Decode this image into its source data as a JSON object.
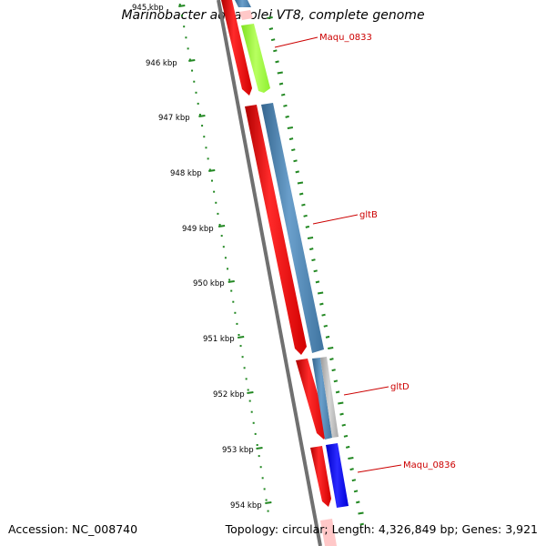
{
  "title": "Marinobacter aquaeolei VT8, complete genome",
  "footer": {
    "accession": "Accession: NC_008740",
    "summary": "Topology: circular; Length: 4,326,849 bp; Genes: 3,921"
  },
  "ticks": [
    "945 kbp",
    "946 kbp",
    "947 kbp",
    "948 kbp",
    "949 kbp",
    "950 kbp",
    "951 kbp",
    "952 kbp",
    "953 kbp",
    "954 kbp"
  ],
  "gene_labels": [
    "Maqu_0833",
    "gltB",
    "gltD",
    "Maqu_0836"
  ],
  "colors": {
    "backbone": "#707070",
    "cds": "#ff0000",
    "gene_blue": "#4682b4",
    "gene_green": "#9aff3a",
    "gene_grey": "#b4b4b4",
    "gene_darkblue": "#0000ff",
    "label": "#cc0000",
    "tick": "#228822"
  }
}
